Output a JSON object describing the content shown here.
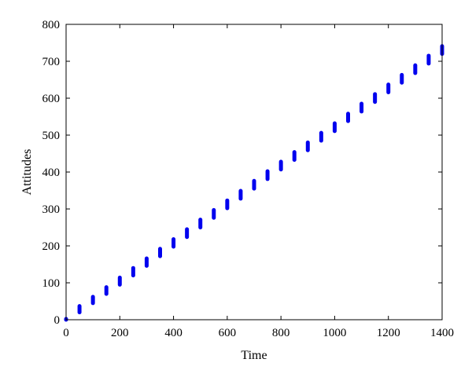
{
  "chart_data": {
    "type": "scatter",
    "title": "",
    "xlabel": "Time",
    "ylabel": "Attitudes",
    "xlim": [
      0,
      1400
    ],
    "ylim": [
      0,
      800
    ],
    "xticks": [
      0,
      200,
      400,
      600,
      800,
      1000,
      1200,
      1400
    ],
    "yticks": [
      0,
      100,
      200,
      300,
      400,
      500,
      600,
      700,
      800
    ],
    "grid": false,
    "legend": "none",
    "series": [
      {
        "color": "#0000ee",
        "marker": "vertical-segment",
        "points": [
          {
            "x": 0,
            "y_low": 0,
            "y_high": 2
          },
          {
            "x": 50,
            "y_low": 20,
            "y_high": 37
          },
          {
            "x": 100,
            "y_low": 45,
            "y_high": 62
          },
          {
            "x": 150,
            "y_low": 70,
            "y_high": 88
          },
          {
            "x": 200,
            "y_low": 95,
            "y_high": 114
          },
          {
            "x": 250,
            "y_low": 120,
            "y_high": 140
          },
          {
            "x": 300,
            "y_low": 146,
            "y_high": 166
          },
          {
            "x": 350,
            "y_low": 172,
            "y_high": 192
          },
          {
            "x": 400,
            "y_low": 198,
            "y_high": 218
          },
          {
            "x": 450,
            "y_low": 224,
            "y_high": 245
          },
          {
            "x": 500,
            "y_low": 250,
            "y_high": 271
          },
          {
            "x": 550,
            "y_low": 276,
            "y_high": 297
          },
          {
            "x": 600,
            "y_low": 302,
            "y_high": 323
          },
          {
            "x": 650,
            "y_low": 328,
            "y_high": 349
          },
          {
            "x": 700,
            "y_low": 355,
            "y_high": 376
          },
          {
            "x": 750,
            "y_low": 381,
            "y_high": 402
          },
          {
            "x": 800,
            "y_low": 407,
            "y_high": 428
          },
          {
            "x": 850,
            "y_low": 433,
            "y_high": 454
          },
          {
            "x": 900,
            "y_low": 459,
            "y_high": 480
          },
          {
            "x": 950,
            "y_low": 485,
            "y_high": 506
          },
          {
            "x": 1000,
            "y_low": 511,
            "y_high": 532
          },
          {
            "x": 1050,
            "y_low": 538,
            "y_high": 558
          },
          {
            "x": 1100,
            "y_low": 564,
            "y_high": 585
          },
          {
            "x": 1150,
            "y_low": 590,
            "y_high": 611
          },
          {
            "x": 1200,
            "y_low": 616,
            "y_high": 637
          },
          {
            "x": 1250,
            "y_low": 642,
            "y_high": 663
          },
          {
            "x": 1300,
            "y_low": 668,
            "y_high": 689
          },
          {
            "x": 1350,
            "y_low": 694,
            "y_high": 715
          },
          {
            "x": 1400,
            "y_low": 720,
            "y_high": 741
          }
        ]
      }
    ]
  }
}
